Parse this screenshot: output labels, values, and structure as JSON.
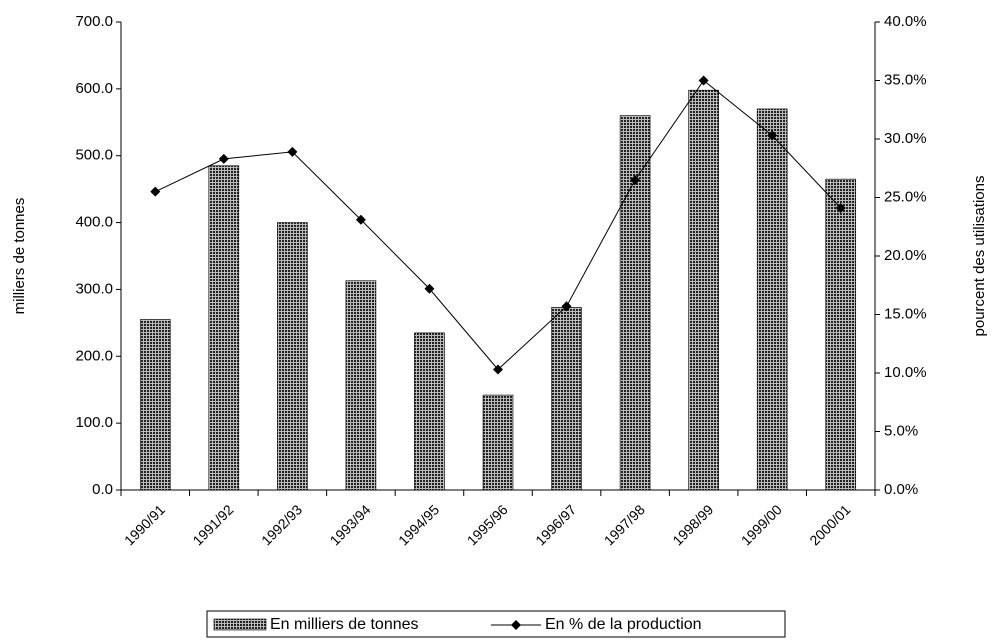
{
  "chart_data": {
    "type": "bar_line",
    "categories": [
      "1990/91",
      "1991/92",
      "1992/93",
      "1993/94",
      "1994/95",
      "1995/96",
      "1996/97",
      "1997/98",
      "1998/99",
      "1999/00",
      "2000/01"
    ],
    "series": [
      {
        "name": "En milliers de tonnes",
        "type": "bar",
        "color": "#555555",
        "values": [
          255,
          485,
          400,
          313,
          235,
          142,
          273,
          560,
          598,
          570,
          465
        ]
      },
      {
        "name": "En % de la production",
        "type": "line",
        "axis": "y2",
        "color": "#000000",
        "values": [
          25.5,
          28.3,
          28.9,
          23.1,
          17.2,
          10.3,
          15.7,
          26.5,
          35.0,
          30.3,
          24.1
        ]
      }
    ],
    "ylabel": "milliers de tonnes",
    "y2label": "pourcent des utilisations",
    "ylim": [
      0,
      700
    ],
    "yticks": [
      {
        "value": 0,
        "label": "0.0"
      },
      {
        "value": 100,
        "label": "100.0"
      },
      {
        "value": 200,
        "label": "200.0"
      },
      {
        "value": 300,
        "label": "300.0"
      },
      {
        "value": 400,
        "label": "400.0"
      },
      {
        "value": 500,
        "label": "500.0"
      },
      {
        "value": 600,
        "label": "600.0"
      },
      {
        "value": 700,
        "label": "700.0"
      }
    ],
    "y2lim": [
      0,
      40
    ],
    "y2ticks": [
      {
        "value": 0,
        "label": "0.0%"
      },
      {
        "value": 5,
        "label": "5.0%"
      },
      {
        "value": 10,
        "label": "10.0%"
      },
      {
        "value": 15,
        "label": "15.0%"
      },
      {
        "value": 20,
        "label": "20.0%"
      },
      {
        "value": 25,
        "label": "25.0%"
      },
      {
        "value": 30,
        "label": "30.0%"
      },
      {
        "value": 35,
        "label": "35.0%"
      },
      {
        "value": 40,
        "label": "40.0%"
      }
    ],
    "legend": "bottom"
  }
}
